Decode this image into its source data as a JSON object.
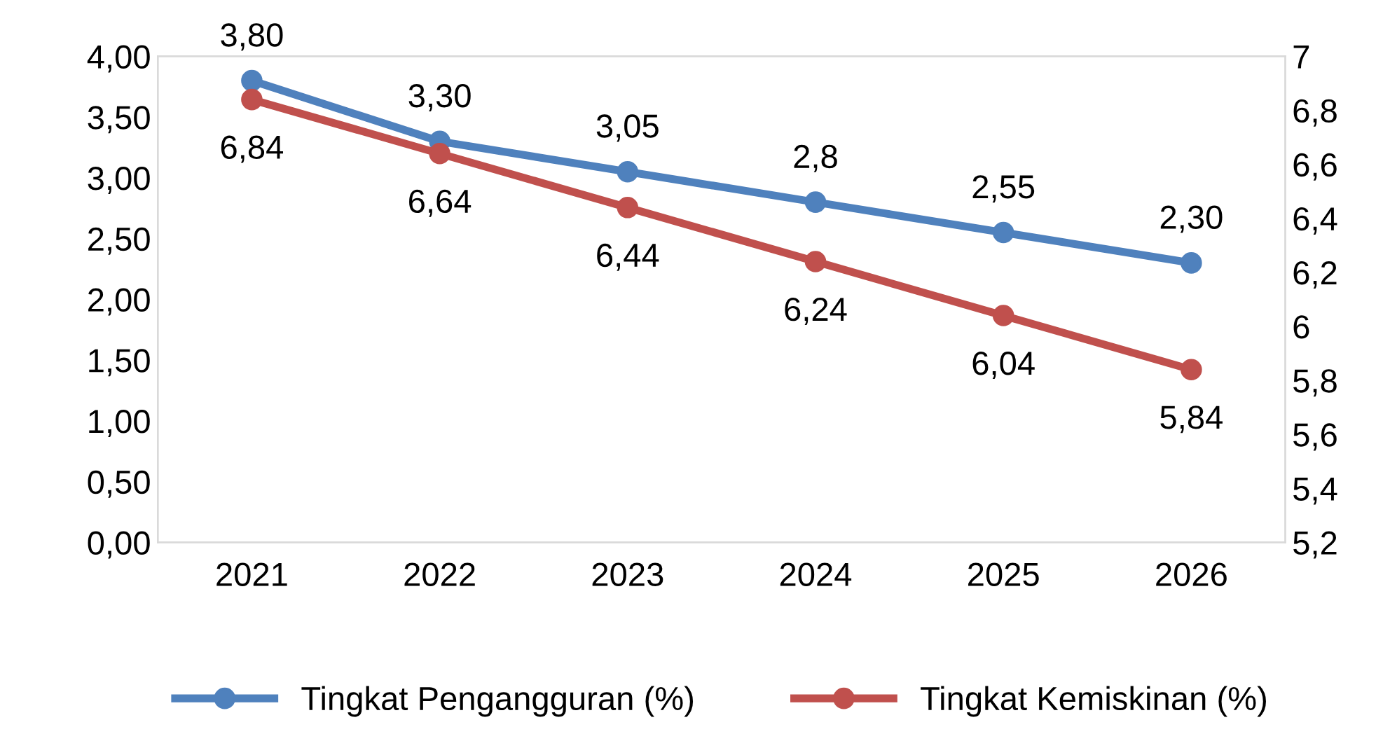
{
  "chart_data": {
    "type": "line",
    "categories": [
      "2021",
      "2022",
      "2023",
      "2024",
      "2025",
      "2026"
    ],
    "series": [
      {
        "name": "Tingkat Pengangguran (%)",
        "color": "#4f81bd",
        "values": [
          3.8,
          3.3,
          3.05,
          2.8,
          2.55,
          2.3
        ],
        "value_labels": [
          "3,80",
          "3,30",
          "3,05",
          "2,8",
          "2,55",
          "2,30"
        ]
      },
      {
        "name": "Tingkat Kemiskinan (%)",
        "color": "#c0504d",
        "axis": "y2",
        "values": [
          6.84,
          6.64,
          6.44,
          6.24,
          6.04,
          5.84
        ],
        "value_labels": [
          "6,84",
          "6,64",
          "6,44",
          "6,24",
          "6,04",
          "5,84"
        ]
      }
    ],
    "ylim": [
      0,
      4
    ],
    "yticks": [
      {
        "value": 0,
        "label": "0,00"
      },
      {
        "value": 0.5,
        "label": "0,50"
      },
      {
        "value": 1,
        "label": "1,00"
      },
      {
        "value": 1.5,
        "label": "1,50"
      },
      {
        "value": 2,
        "label": "2,00"
      },
      {
        "value": 2.5,
        "label": "2,50"
      },
      {
        "value": 3,
        "label": "3,00"
      },
      {
        "value": 3.5,
        "label": "3,50"
      },
      {
        "value": 4,
        "label": "4,00"
      }
    ],
    "y2lim": [
      5.2,
      7
    ],
    "y2ticks": [
      {
        "value": 5.2,
        "label": "5,2"
      },
      {
        "value": 5.4,
        "label": "5,4"
      },
      {
        "value": 5.6,
        "label": "5,6"
      },
      {
        "value": 5.8,
        "label": "5,8"
      },
      6,
      {
        "value": 6.2,
        "label": "6,2"
      },
      {
        "value": 6.4,
        "label": "6,4"
      },
      {
        "value": 6.6,
        "label": "6,6"
      },
      {
        "value": 6.8,
        "label": "6,8"
      },
      7
    ],
    "marker": "circle",
    "line_style": "solid",
    "grid": false,
    "legend": "bottom"
  }
}
